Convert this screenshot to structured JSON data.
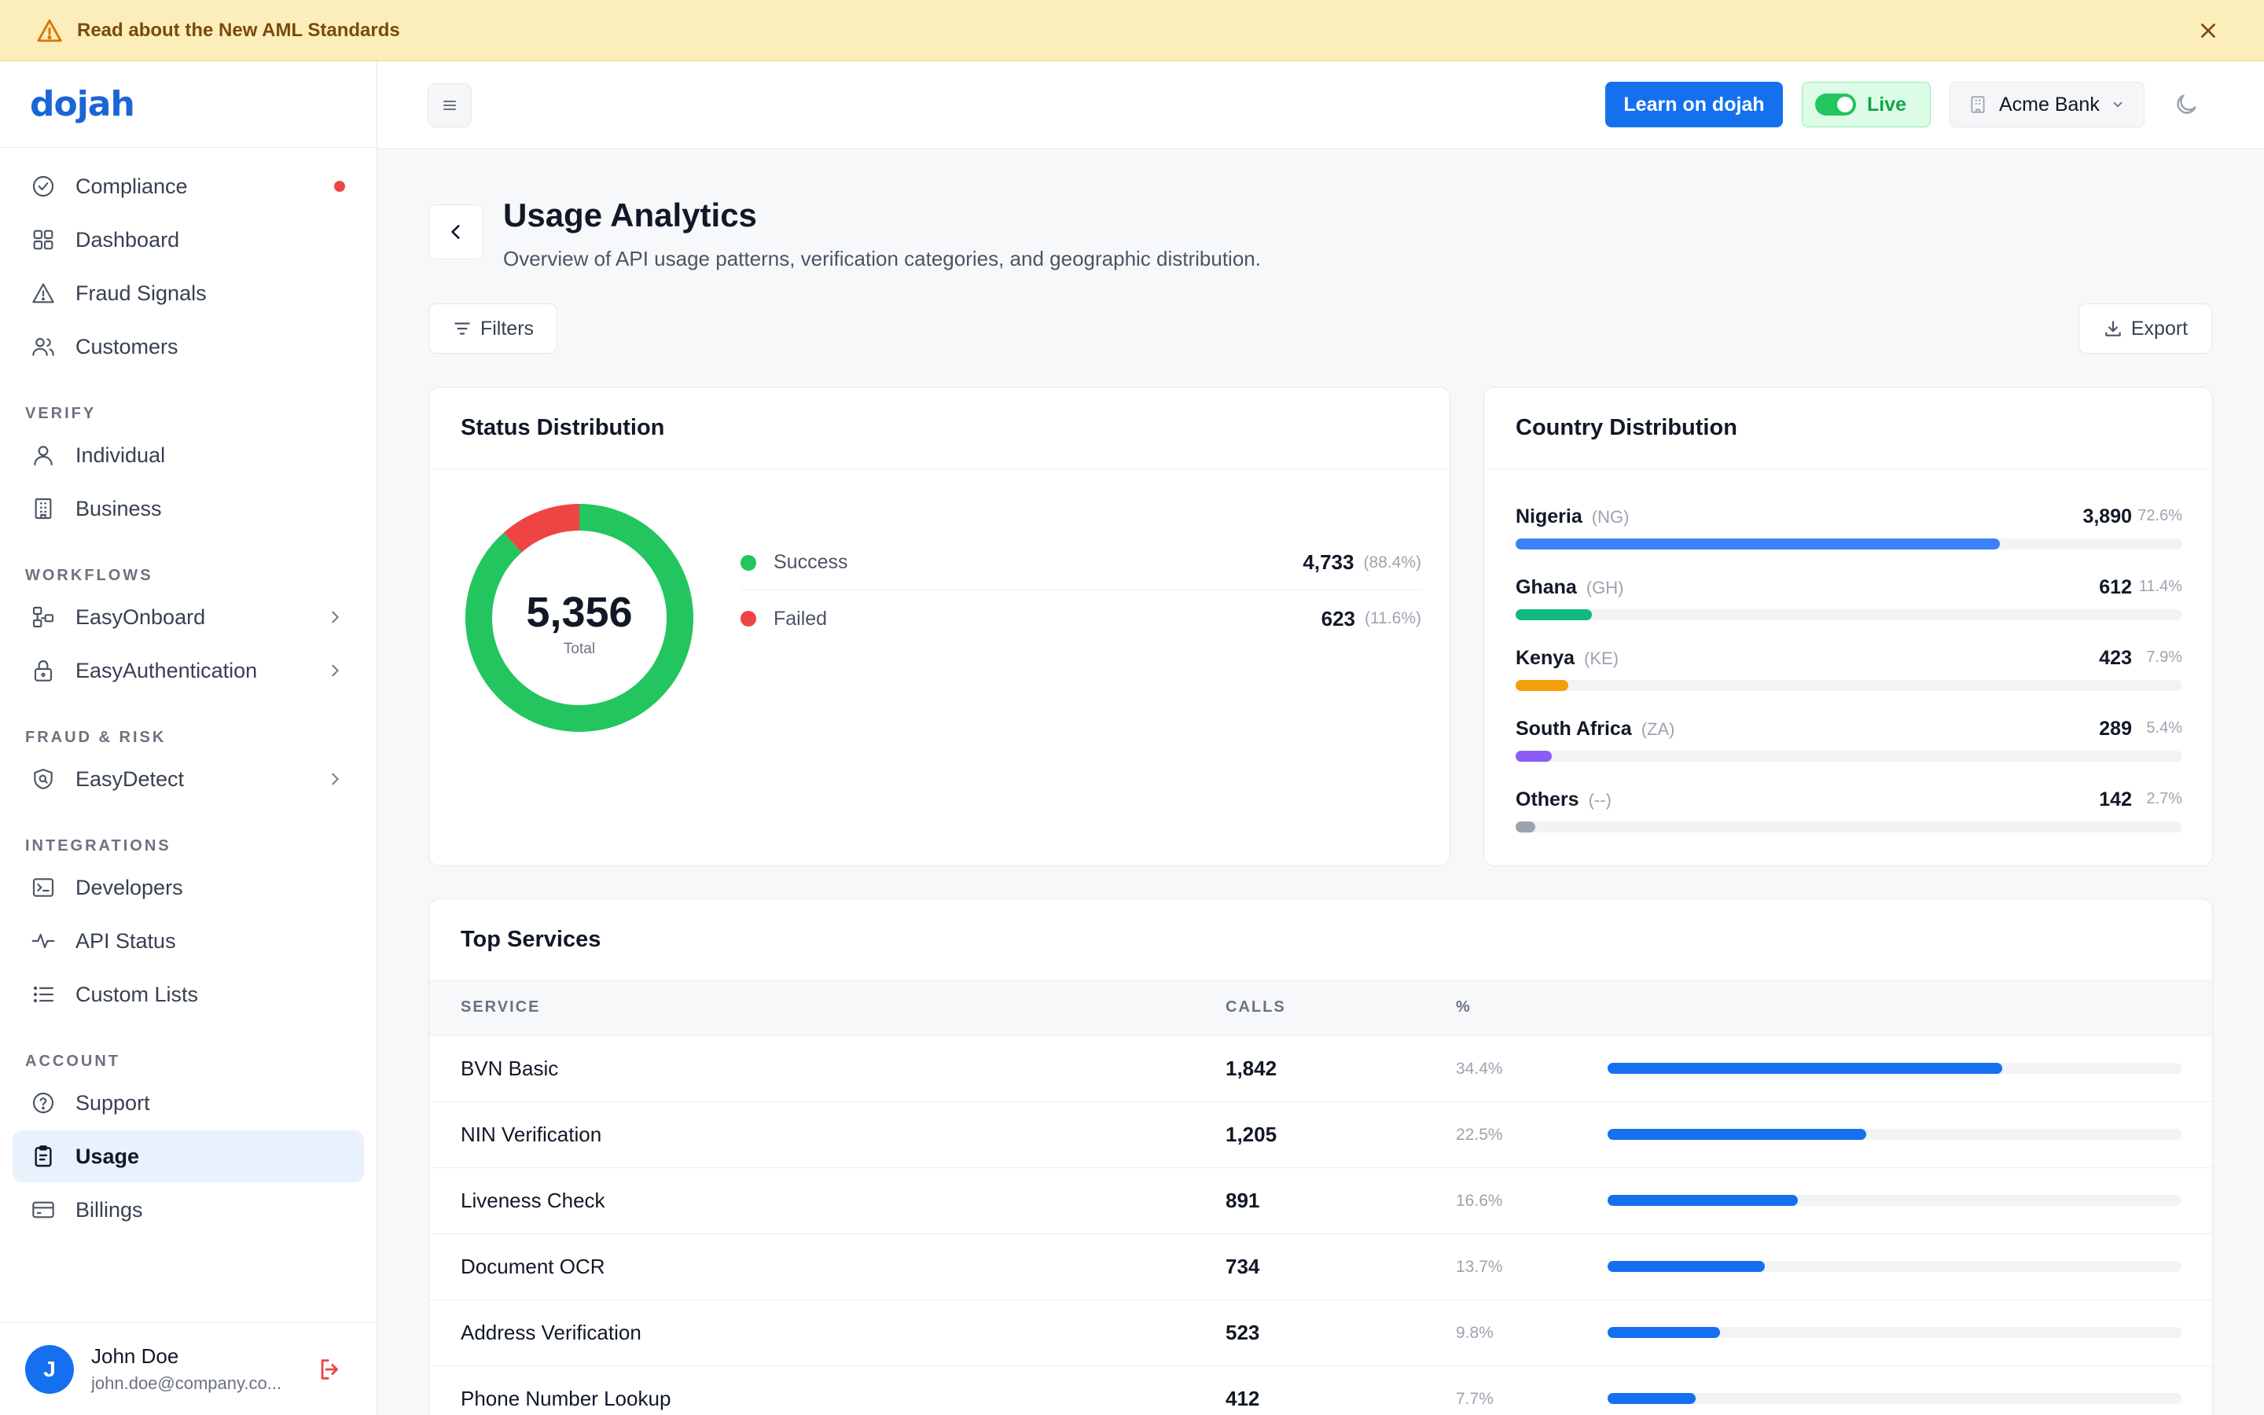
{
  "banner": {
    "text": "Read about the New AML Standards"
  },
  "logo": "dojah",
  "sidebar": {
    "top_items": [
      {
        "label": "Compliance",
        "icon": "check-circle-icon",
        "alert": true
      },
      {
        "label": "Dashboard",
        "icon": "grid-icon"
      },
      {
        "label": "Fraud Signals",
        "icon": "warning-icon"
      },
      {
        "label": "Customers",
        "icon": "users-icon"
      }
    ],
    "sections": {
      "verify": "VERIFY",
      "workflows": "WORKFLOWS",
      "fraud_risk": "FRAUD & RISK",
      "integrations": "INTEGRATIONS",
      "account": "ACCOUNT"
    },
    "verify_items": [
      {
        "label": "Individual",
        "icon": "user-icon"
      },
      {
        "label": "Business",
        "icon": "building-icon"
      }
    ],
    "workflow_items": [
      {
        "label": "EasyOnboard",
        "icon": "workflow-icon"
      },
      {
        "label": "EasyAuthentication",
        "icon": "lock-icon"
      }
    ],
    "fraud_items": [
      {
        "label": "EasyDetect",
        "icon": "shield-search-icon"
      }
    ],
    "integration_items": [
      {
        "label": "Developers",
        "icon": "terminal-icon"
      },
      {
        "label": "API Status",
        "icon": "activity-icon"
      },
      {
        "label": "Custom Lists",
        "icon": "list-icon"
      }
    ],
    "account_items": [
      {
        "label": "Support",
        "icon": "help-circle-icon"
      },
      {
        "label": "Usage",
        "icon": "clipboard-icon",
        "active": true
      },
      {
        "label": "Billings",
        "icon": "credit-card-icon"
      }
    ],
    "user": {
      "initial": "J",
      "name": "John Doe",
      "email": "john.doe@company.co..."
    }
  },
  "topbar": {
    "learn_label": "Learn on dojah",
    "live_label": "Live",
    "bank_label": "Acme Bank"
  },
  "page": {
    "title": "Usage Analytics",
    "subtitle": "Overview of API usage patterns, verification categories, and geographic distribution.",
    "filters_label": "Filters",
    "export_label": "Export"
  },
  "status": {
    "title": "Status Distribution",
    "total": "5,356",
    "total_label": "Total",
    "items": [
      {
        "name": "Success",
        "value": "4,733",
        "pct": "(88.4%)",
        "fraction": 0.884,
        "color": "#22c55e"
      },
      {
        "name": "Failed",
        "value": "623",
        "pct": "(11.6%)",
        "fraction": 0.116,
        "color": "#ef4444"
      }
    ]
  },
  "country": {
    "title": "Country Distribution",
    "items": [
      {
        "name": "Nigeria",
        "code": "(NG)",
        "value": "3,890",
        "pct": "72.6%",
        "fraction": 0.726,
        "color": "#3b82f6"
      },
      {
        "name": "Ghana",
        "code": "(GH)",
        "value": "612",
        "pct": "11.4%",
        "fraction": 0.114,
        "color": "#10b981"
      },
      {
        "name": "Kenya",
        "code": "(KE)",
        "value": "423",
        "pct": "7.9%",
        "fraction": 0.079,
        "color": "#f59e0b"
      },
      {
        "name": "South Africa",
        "code": "(ZA)",
        "value": "289",
        "pct": "5.4%",
        "fraction": 0.054,
        "color": "#8b5cf6"
      },
      {
        "name": "Others",
        "code": "(--)",
        "value": "142",
        "pct": "2.7%",
        "fraction": 0.027,
        "color": "#9ca3af"
      }
    ]
  },
  "services": {
    "title": "Top Services",
    "columns": {
      "service": "SERVICE",
      "calls": "CALLS",
      "pct": "%"
    },
    "rows": [
      {
        "name": "BVN Basic",
        "calls": "1,842",
        "pct": "34.4%",
        "fraction": 0.344
      },
      {
        "name": "NIN Verification",
        "calls": "1,205",
        "pct": "22.5%",
        "fraction": 0.225
      },
      {
        "name": "Liveness Check",
        "calls": "891",
        "pct": "16.6%",
        "fraction": 0.166
      },
      {
        "name": "Document OCR",
        "calls": "734",
        "pct": "13.7%",
        "fraction": 0.137
      },
      {
        "name": "Address Verification",
        "calls": "523",
        "pct": "9.8%",
        "fraction": 0.098
      },
      {
        "name": "Phone Number Lookup",
        "calls": "412",
        "pct": "7.7%",
        "fraction": 0.077
      }
    ]
  }
}
